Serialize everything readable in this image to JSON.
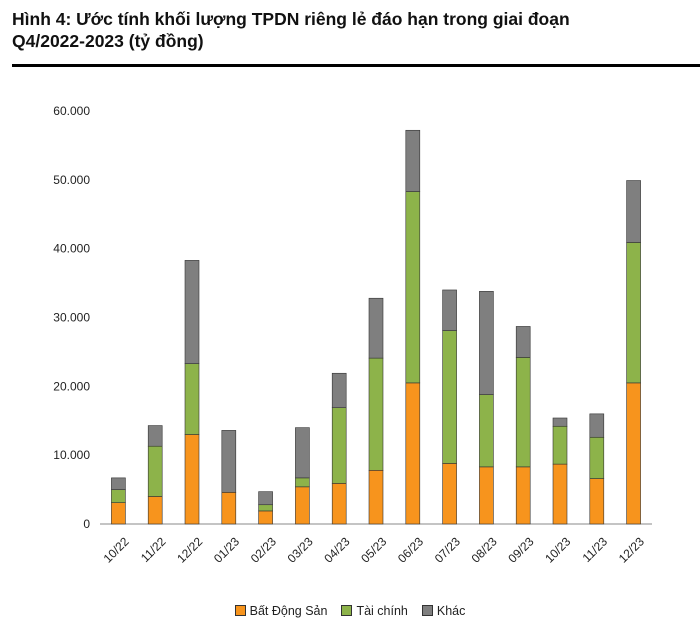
{
  "title_line1": "Hình 4: Ước tính khối lượng TPDN riêng lẻ đáo hạn trong giai đoạn",
  "title_line2": "Q4/2022-2023 (tỷ đồng)",
  "chart_data": {
    "type": "bar",
    "stacked": true,
    "title": "Hình 4: Ước tính khối lượng TPDN riêng lẻ đáo hạn trong giai đoạn Q4/2022-2023 (tỷ đồng)",
    "xlabel": "",
    "ylabel": "",
    "ylim": [
      0,
      60000
    ],
    "yticks": [
      0,
      10000,
      20000,
      30000,
      40000,
      50000,
      60000
    ],
    "ytick_labels": [
      "0",
      "10.000",
      "20.000",
      "30.000",
      "40.000",
      "50.000",
      "60.000"
    ],
    "grid": false,
    "legend_position": "bottom",
    "categories": [
      "10/22",
      "11/22",
      "12/22",
      "01/23",
      "02/23",
      "03/23",
      "04/23",
      "05/23",
      "06/23",
      "07/23",
      "08/23",
      "09/23",
      "10/23",
      "11/23",
      "12/23"
    ],
    "series": [
      {
        "name": "Bất Động Sản",
        "color": "#F7941D",
        "values": [
          3100,
          4000,
          13000,
          4600,
          1900,
          5400,
          5900,
          7800,
          20500,
          8800,
          8300,
          8300,
          8700,
          6600,
          20500
        ]
      },
      {
        "name": "Tài chính",
        "color": "#8DB34A",
        "values": [
          1900,
          7300,
          10300,
          0,
          900,
          1300,
          11000,
          16300,
          27800,
          19300,
          10500,
          15900,
          5500,
          6000,
          20400
        ]
      },
      {
        "name": "Khác",
        "color": "#7F7F7F",
        "values": [
          1700,
          3000,
          15000,
          9000,
          1900,
          7300,
          5000,
          8700,
          8900,
          5900,
          15000,
          4500,
          1200,
          3400,
          9000
        ]
      }
    ]
  }
}
